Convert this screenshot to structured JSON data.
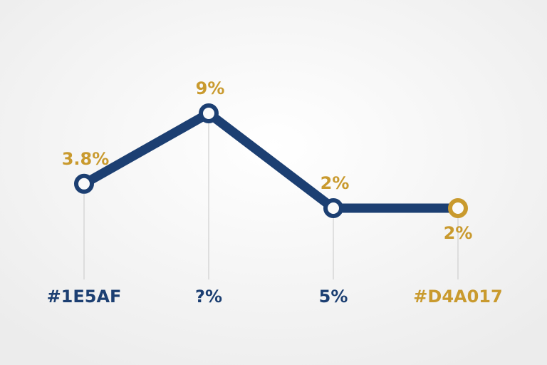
{
  "chart_data": {
    "type": "line",
    "categories": [
      "#1E5AF",
      "?%",
      "5%",
      "#D4A017"
    ],
    "series": [
      {
        "color": "#1c3f72",
        "values": [
          3.8,
          9,
          2,
          2
        ],
        "value_labels": [
          "3.8%",
          "9%",
          "2%",
          "2%"
        ]
      }
    ],
    "point_colors": [
      "#1c3f72",
      "#1c3f72",
      "#1c3f72",
      "#c99a2e"
    ],
    "category_colors": [
      "#1c3f72",
      "#1c3f72",
      "#1c3f72",
      "#c99a2e"
    ],
    "label_color": "#c99a2e",
    "ylim": [
      0,
      10
    ]
  }
}
